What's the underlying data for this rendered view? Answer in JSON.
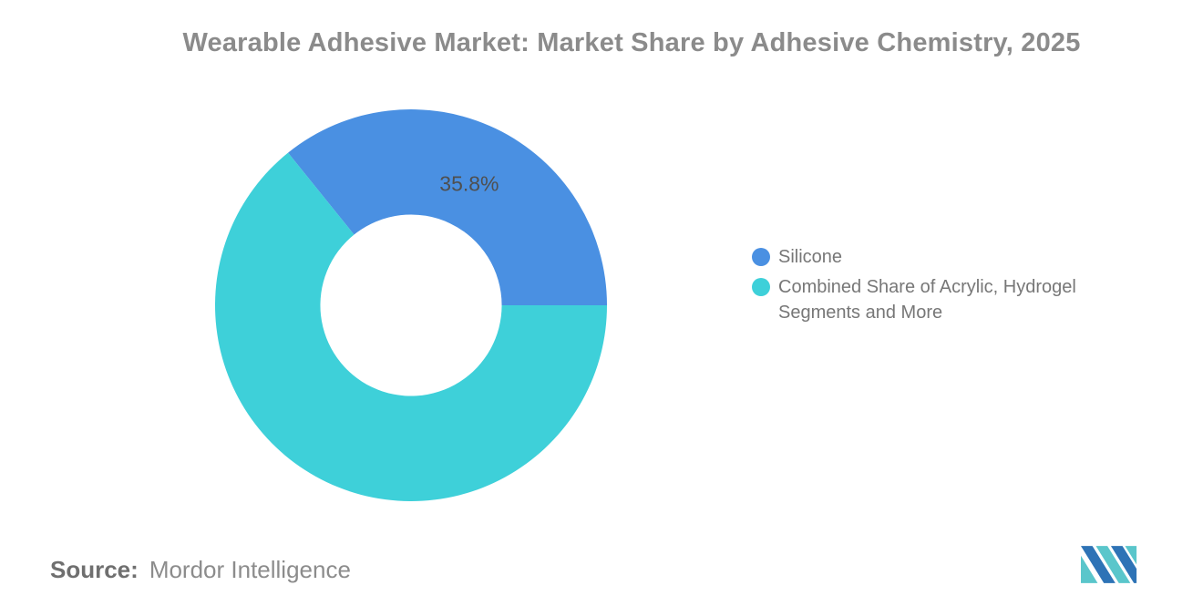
{
  "chart_data": {
    "type": "pie",
    "subtype": "donut",
    "title": "Wearable Adhesive Market: Market Share by Adhesive Chemistry, 2025",
    "series": [
      {
        "name": "Silicone",
        "value": 35.8,
        "color": "#4A90E2",
        "data_label": "35.8%"
      },
      {
        "name": "Combined Share of Acrylic, Hydrogel Segments and More",
        "value": 64.2,
        "color": "#3ED0D9",
        "data_label": null
      }
    ],
    "units": "percent",
    "start_angle_deg": -38.88,
    "inner_radius_ratio": 0.463,
    "legend_position": "right-middle",
    "data_label_color": "#4F4F4F",
    "background": "#FFFFFF"
  },
  "source": {
    "label": "Source:",
    "text": "Mordor Intelligence"
  },
  "logo": {
    "name": "mordor-intelligence-logo",
    "colors": {
      "blue": "#2E73B6",
      "teal": "#5AC6CB"
    }
  }
}
